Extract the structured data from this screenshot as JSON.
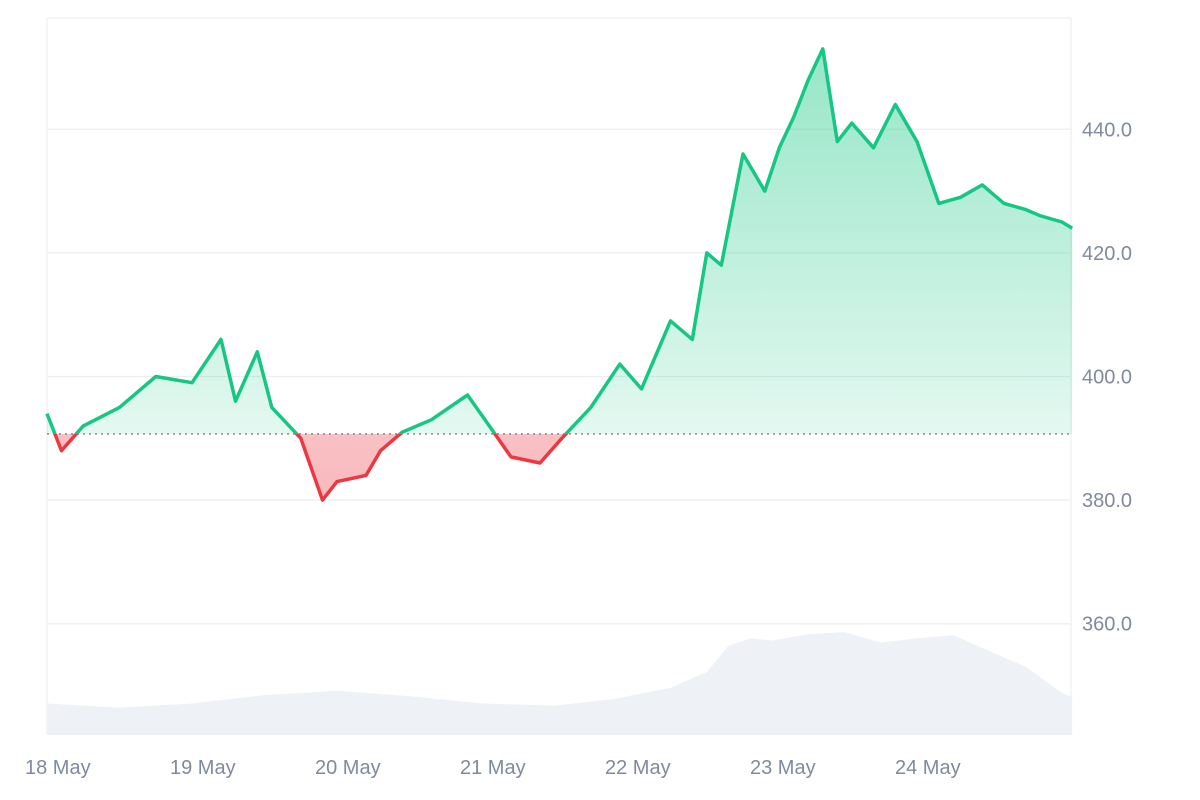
{
  "chart_data": {
    "type": "area",
    "baseline": 390.7,
    "ylim": [
      342,
      458
    ],
    "y_ticks": [
      "360.0",
      "380.0",
      "400.0",
      "420.0",
      "440.0"
    ],
    "x_ticks": [
      "18 May",
      "19 May",
      "20 May",
      "21 May",
      "22 May",
      "23 May",
      "24 May"
    ],
    "x": [
      0,
      0.1,
      0.25,
      0.5,
      0.75,
      1.0,
      1.2,
      1.3,
      1.45,
      1.55,
      1.75,
      1.9,
      2.0,
      2.2,
      2.3,
      2.45,
      2.65,
      2.9,
      3.05,
      3.2,
      3.4,
      3.55,
      3.75,
      3.95,
      4.1,
      4.3,
      4.45,
      4.55,
      4.65,
      4.8,
      4.95,
      5.05,
      5.15,
      5.25,
      5.35,
      5.45,
      5.55,
      5.7,
      5.85,
      6.0,
      6.15,
      6.3,
      6.45,
      6.6,
      6.75,
      6.85,
      7.0,
      7.07
    ],
    "values": [
      394,
      388,
      392,
      395,
      400,
      399,
      406,
      396,
      404,
      395,
      390,
      380,
      383,
      384,
      388,
      391,
      393,
      397,
      392,
      387,
      386,
      390,
      395,
      402,
      398,
      409,
      406,
      420,
      418,
      436,
      430,
      437,
      442,
      448,
      453,
      438,
      441,
      437,
      444,
      438,
      428,
      429,
      431,
      428,
      427,
      426,
      425,
      424
    ],
    "volume": {
      "x": [
        0,
        0.5,
        1.0,
        1.5,
        2.0,
        2.5,
        3.0,
        3.5,
        3.9,
        4.3,
        4.55,
        4.7,
        4.85,
        5.0,
        5.25,
        5.5,
        5.75,
        6.0,
        6.25,
        6.5,
        6.75,
        7.0,
        7.07
      ],
      "values": [
        0.3,
        0.26,
        0.3,
        0.38,
        0.42,
        0.37,
        0.3,
        0.28,
        0.34,
        0.45,
        0.6,
        0.85,
        0.92,
        0.9,
        0.96,
        0.98,
        0.88,
        0.92,
        0.95,
        0.8,
        0.65,
        0.4,
        0.36
      ]
    },
    "colors": {
      "up": "#16c784",
      "down": "#ea3943",
      "volume": "#eef1f5",
      "grid": "#eceef1",
      "tick": "#808a9d"
    }
  }
}
